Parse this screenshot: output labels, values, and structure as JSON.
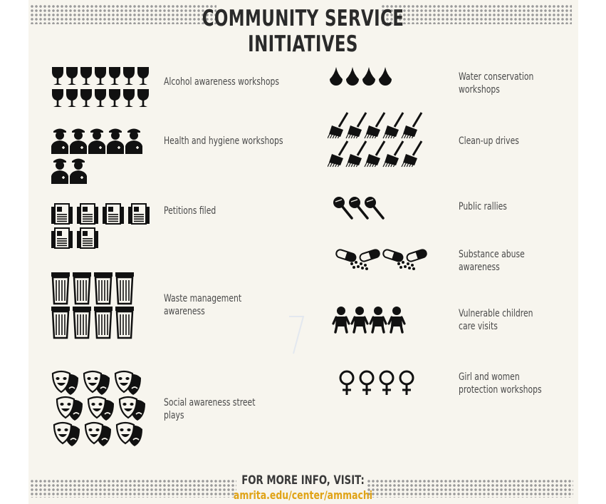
{
  "title": {
    "line1": "COMMUNITY SERVICE",
    "line2": "INITIATIVES"
  },
  "colors": {
    "icon": "#111111",
    "text": "#4a4a4a",
    "link": "#e0a316",
    "background": "#f7f5ee"
  },
  "left_items": [
    {
      "label": "Alcohol awareness workshops",
      "icon": "wine-glass-icon",
      "count": 14
    },
    {
      "label": "Health and hygiene workshops",
      "icon": "health-worker-icon",
      "count": 7
    },
    {
      "label": "Petitions filed",
      "icon": "petition-document-icon",
      "count": 6
    },
    {
      "label": "Waste management\nawareness",
      "icon": "trash-bin-icon",
      "count": 8
    },
    {
      "label": "Social awareness street\nplays",
      "icon": "theater-masks-icon",
      "count": 9
    }
  ],
  "right_items": [
    {
      "label": "Water conservation\nworkshops",
      "icon": "water-drop-icon",
      "count": 4
    },
    {
      "label": "Clean-up drives",
      "icon": "broom-icon",
      "count": 10
    },
    {
      "label": "Public rallies",
      "icon": "microphone-icon",
      "count": 3
    },
    {
      "label": "Substance abuse\nawareness",
      "icon": "pill-capsule-icon",
      "count": 4
    },
    {
      "label": "Vulnerable children\ncare visits",
      "icon": "child-icon",
      "count": 4
    },
    {
      "label": "Girl and women\nprotection workshops",
      "icon": "female-symbol-icon",
      "count": 4
    }
  ],
  "footer": {
    "info": "FOR MORE INFO, VISIT:",
    "url": "amrita.edu/center/ammachi"
  }
}
